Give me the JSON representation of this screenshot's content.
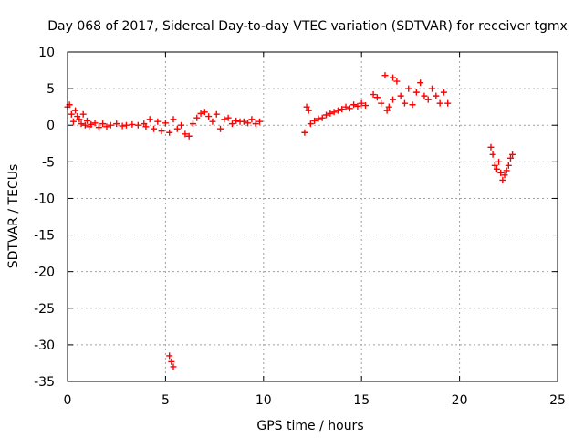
{
  "chart_data": {
    "type": "scatter",
    "title": "Day 068 of 2017, Sidereal Day-to-day VTEC variation (SDTVAR) for receiver tgmx",
    "xlabel": "GPS time / hours",
    "ylabel": "SDTVAR / TECUs",
    "xlim": [
      0,
      25
    ],
    "ylim": [
      -35,
      10
    ],
    "xticks": [
      "0",
      "5",
      "10",
      "15",
      "20",
      "25"
    ],
    "yticks": [
      "10",
      "5",
      "0",
      "-5",
      "-10",
      "-15",
      "-20",
      "-25",
      "-30",
      "-35"
    ],
    "grid": true,
    "marker": "plus",
    "marker_color": "#ff0000",
    "series": [
      {
        "name": "SDTVAR",
        "x": [
          0.0,
          0.1,
          0.2,
          0.3,
          0.4,
          0.5,
          0.6,
          0.7,
          0.8,
          0.9,
          1.0,
          1.1,
          1.2,
          1.4,
          1.6,
          1.8,
          2.0,
          2.2,
          2.5,
          2.8,
          3.0,
          3.3,
          3.6,
          3.9,
          4.0,
          4.2,
          4.4,
          4.6,
          4.8,
          5.0,
          5.2,
          5.4,
          5.6,
          5.8,
          6.0,
          6.2,
          6.4,
          6.6,
          6.8,
          7.0,
          7.2,
          7.4,
          7.6,
          7.8,
          8.0,
          8.2,
          8.4,
          8.6,
          8.8,
          9.0,
          9.2,
          9.4,
          9.6,
          9.8,
          5.2,
          5.3,
          5.4,
          12.1,
          12.2,
          12.3,
          12.4,
          12.6,
          12.8,
          13.0,
          13.2,
          13.4,
          13.6,
          13.8,
          14.0,
          14.2,
          14.4,
          14.6,
          14.8,
          15.0,
          15.2,
          15.6,
          15.8,
          16.0,
          16.2,
          16.4,
          16.6,
          16.8,
          17.0,
          17.2,
          17.4,
          17.6,
          17.8,
          18.0,
          18.2,
          18.4,
          18.6,
          18.8,
          19.0,
          19.2,
          19.4,
          16.3,
          16.6,
          21.6,
          21.7,
          21.8,
          21.9,
          22.0,
          22.1,
          22.2,
          22.3,
          22.4,
          22.5,
          22.6,
          22.7
        ],
        "y": [
          2.5,
          2.8,
          1.5,
          0.5,
          2.0,
          1.2,
          0.8,
          0.2,
          1.5,
          0.0,
          0.6,
          -0.2,
          0.1,
          0.3,
          -0.3,
          0.2,
          -0.2,
          0.0,
          0.2,
          -0.1,
          0.0,
          0.1,
          0.0,
          0.2,
          -0.2,
          0.8,
          -0.5,
          0.5,
          -0.8,
          0.3,
          -1.0,
          0.8,
          -0.5,
          0.0,
          -1.2,
          -1.5,
          0.2,
          1.0,
          1.6,
          1.8,
          1.2,
          0.5,
          1.5,
          -0.5,
          0.8,
          1.0,
          0.2,
          0.6,
          0.5,
          0.5,
          0.3,
          0.8,
          0.2,
          0.5,
          -31.5,
          -32.3,
          -33.0,
          -1.0,
          2.5,
          2.0,
          0.2,
          0.6,
          0.9,
          1.0,
          1.4,
          1.6,
          1.8,
          2.0,
          2.2,
          2.5,
          2.3,
          2.8,
          2.6,
          3.0,
          2.7,
          4.2,
          3.8,
          3.0,
          6.8,
          2.5,
          3.5,
          6.0,
          4.0,
          3.0,
          5.0,
          2.8,
          4.5,
          5.8,
          4.0,
          3.5,
          5.0,
          4.0,
          3.0,
          4.5,
          3.0,
          2.0,
          6.5,
          -3.0,
          -4.0,
          -5.5,
          -6.0,
          -5.0,
          -6.5,
          -7.5,
          -6.8,
          -6.2,
          -5.5,
          -4.5,
          -4.0
        ]
      }
    ]
  }
}
